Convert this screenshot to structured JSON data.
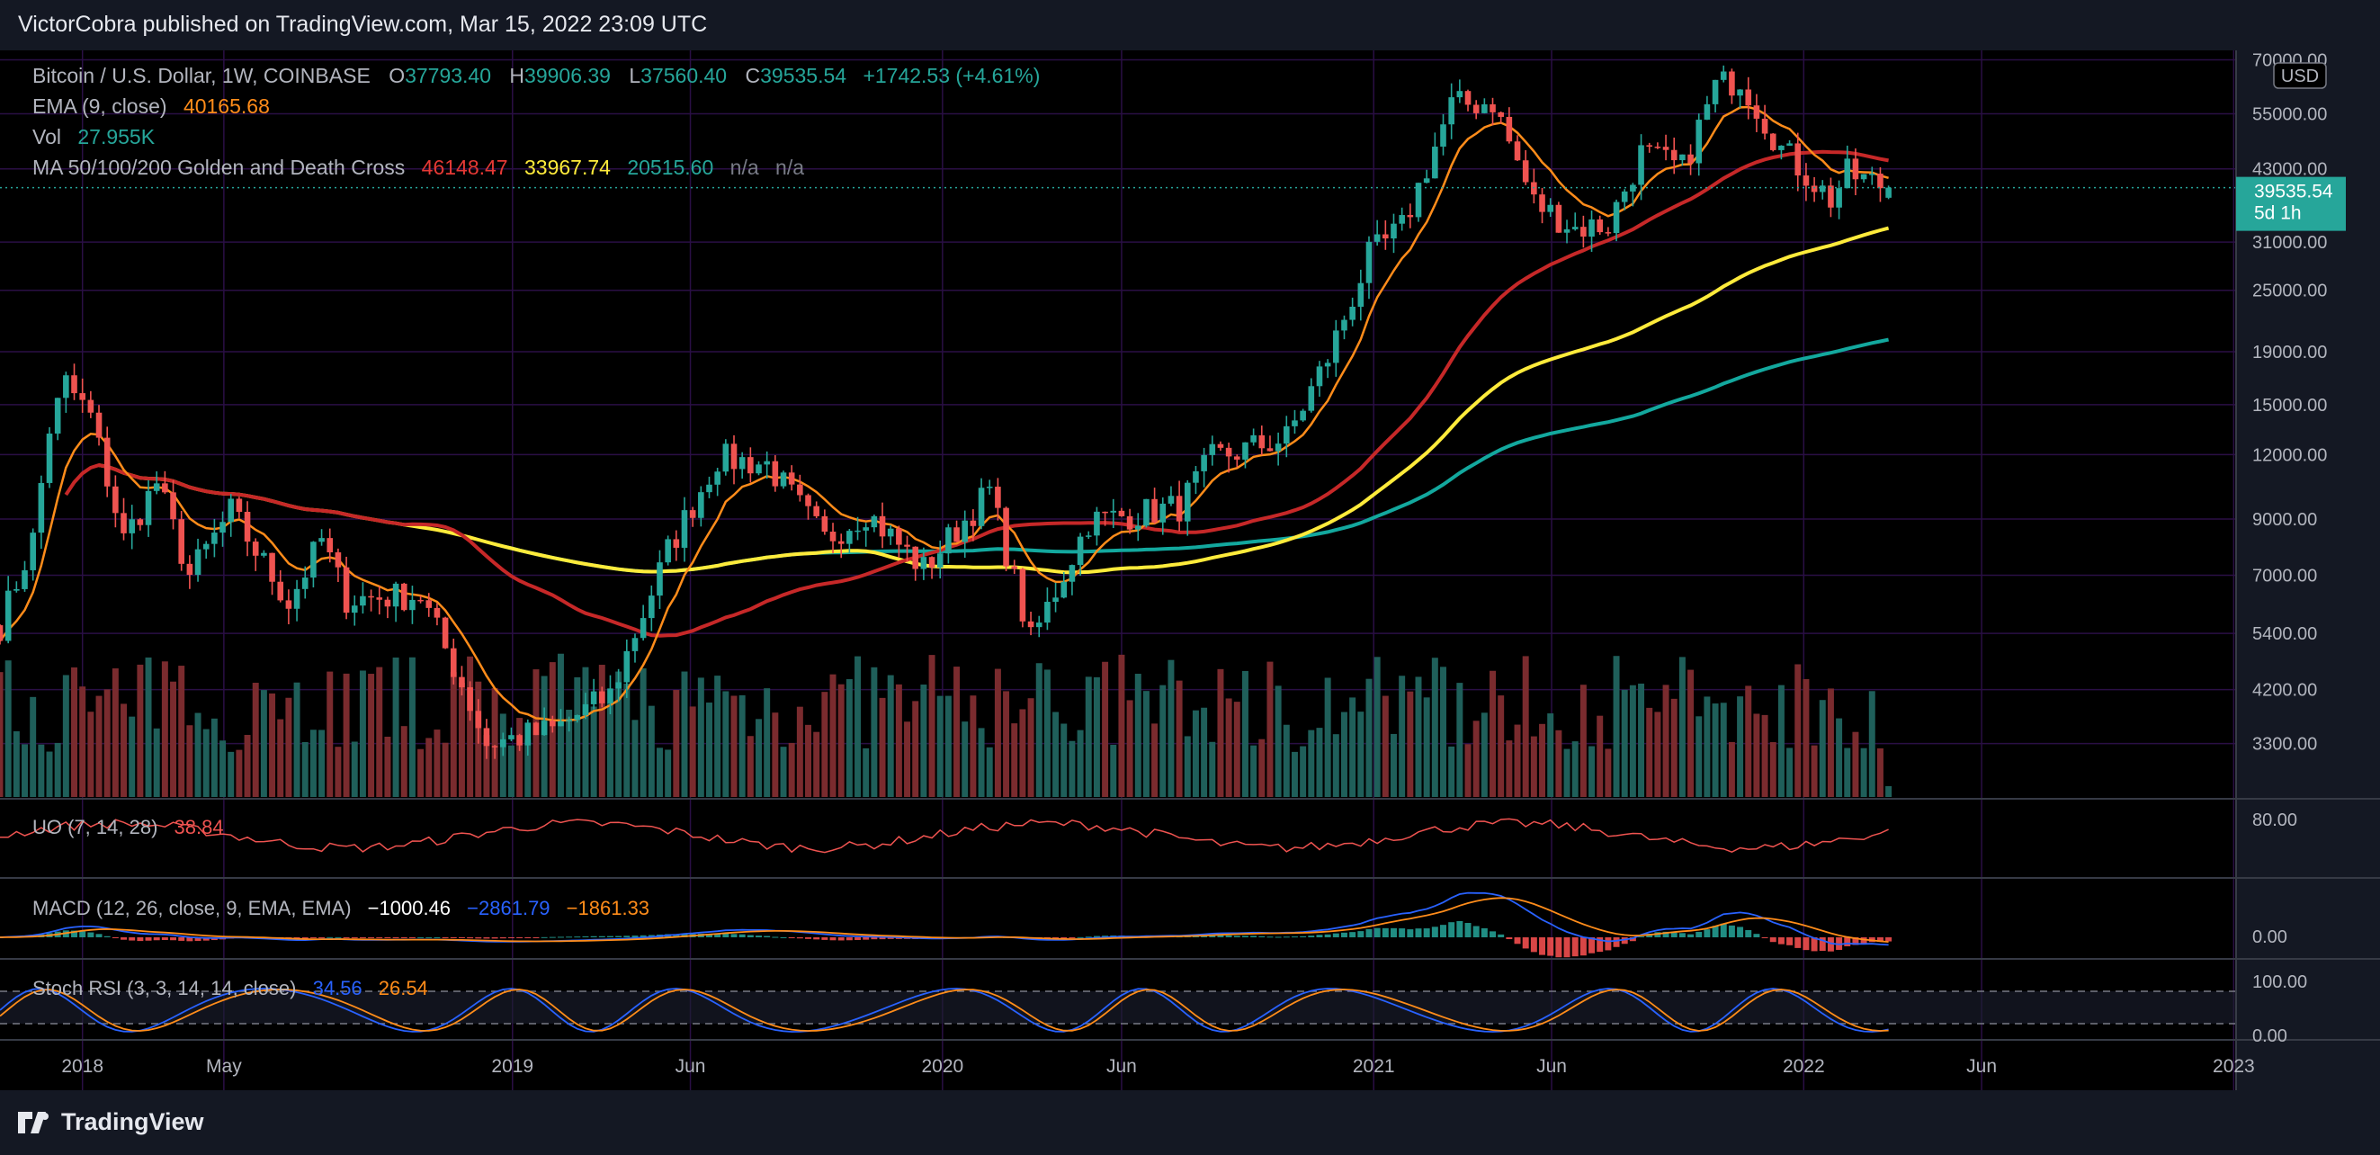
{
  "header": {
    "published": "VictorCobra published on TradingView.com, Mar 15, 2022 23:09 UTC"
  },
  "footer": {
    "brand": "TradingView"
  },
  "colors": {
    "background": "#000000",
    "grid": "#2a0f45",
    "up": "#26a69a",
    "down": "#ef5350",
    "ema": "#ff8c1a",
    "ma50": "#c62828",
    "ma100": "#ffeb3b",
    "ma200": "#13a89e",
    "text": "#b2b5be",
    "price_tag": "#26a69a"
  },
  "legend": {
    "symbol": "Bitcoin / U.S. Dollar, 1W, COINBASE",
    "o_label": "O",
    "o_value": "37793.40",
    "h_label": "H",
    "h_value": "39906.39",
    "l_label": "L",
    "l_value": "37560.40",
    "c_label": "C",
    "c_value": "39535.54",
    "change": "+1742.53 (+4.61%)",
    "ema_label": "EMA (9, close)",
    "ema_value": "40165.68",
    "vol_label": "Vol",
    "vol_value": "27.955K",
    "ma_label": "MA 50/100/200 Golden and Death Cross",
    "ma50_value": "46148.47",
    "ma100_value": "33967.74",
    "ma200_value": "20515.60",
    "na1": "n/a",
    "na2": "n/a"
  },
  "price_axis": {
    "currency": "USD",
    "current_price": "39535.54",
    "countdown": "5d 1h"
  },
  "oscillators": {
    "uo": {
      "label": "UO (7, 14, 28)",
      "value": "38.84",
      "levels": [
        "80.00"
      ]
    },
    "macd": {
      "label": "MACD (12, 26, close, 9, EMA, EMA)",
      "v1": "−1000.46",
      "v2": "−2861.79",
      "v3": "−1861.33",
      "levels": [
        "0.00"
      ]
    },
    "stoch": {
      "label": "Stoch RSI (3, 3, 14, 14, close)",
      "k": "34.56",
      "d": "26.54",
      "levels": [
        "100.00",
        "0.00"
      ]
    }
  },
  "chart_data": {
    "type": "candlestick",
    "timeframe": "1W",
    "symbol": "BTC/USD",
    "y_scale": "log",
    "y_ticks": [
      70000,
      55000,
      43000,
      31000,
      25000,
      19000,
      15000,
      12000,
      9000,
      7000,
      5400,
      4200,
      3300
    ],
    "y_tick_labels": [
      "70000.00",
      "55000.00",
      "43000.00",
      "31000.00",
      "25000.00",
      "19000.00",
      "15000.00",
      "12000.00",
      "9000.00",
      "7000.00",
      "5400.00",
      "4200.00",
      "3300.00"
    ],
    "ylim": [
      2600,
      73000
    ],
    "x_labels": [
      "2018",
      "May",
      "2019",
      "Jun",
      "2020",
      "Jun",
      "2021",
      "Jun",
      "2022",
      "Jun",
      "2023"
    ],
    "x_label_dates": [
      "2018-01-01",
      "2018-05-01",
      "2019-01-01",
      "2019-06-01",
      "2020-01-01",
      "2020-06-01",
      "2021-01-01",
      "2021-06-01",
      "2022-01-01",
      "2022-06-01",
      "2023-01-01"
    ],
    "xlim": [
      "2017-10-23",
      "2023-01-03"
    ],
    "price_anchors": [
      [
        "2017-10-23",
        5600
      ],
      [
        "2017-11-20",
        8200
      ],
      [
        "2017-12-04",
        13500
      ],
      [
        "2017-12-18",
        16500
      ],
      [
        "2018-01-08",
        14200
      ],
      [
        "2018-02-05",
        8200
      ],
      [
        "2018-03-05",
        10600
      ],
      [
        "2018-04-02",
        7000
      ],
      [
        "2018-05-07",
        9300
      ],
      [
        "2018-06-25",
        6200
      ],
      [
        "2018-07-23",
        8200
      ],
      [
        "2018-08-13",
        6300
      ],
      [
        "2018-10-15",
        6400
      ],
      [
        "2018-11-19",
        4300
      ],
      [
        "2018-12-10",
        3300
      ],
      [
        "2019-02-04",
        3500
      ],
      [
        "2019-03-25",
        4100
      ],
      [
        "2019-05-13",
        7800
      ],
      [
        "2019-06-24",
        11800
      ],
      [
        "2019-08-05",
        11500
      ],
      [
        "2019-09-23",
        8200
      ],
      [
        "2019-10-28",
        9300
      ],
      [
        "2019-12-16",
        7200
      ],
      [
        "2020-02-10",
        10200
      ],
      [
        "2020-03-16",
        5200
      ],
      [
        "2020-05-04",
        8900
      ],
      [
        "2020-07-20",
        9500
      ],
      [
        "2020-08-17",
        11800
      ],
      [
        "2020-10-19",
        12900
      ],
      [
        "2020-11-23",
        18500
      ],
      [
        "2020-12-28",
        29000
      ],
      [
        "2021-01-25",
        33000
      ],
      [
        "2021-03-08",
        57000
      ],
      [
        "2021-04-12",
        58000
      ],
      [
        "2021-05-17",
        37000
      ],
      [
        "2021-06-21",
        33000
      ],
      [
        "2021-07-19",
        33500
      ],
      [
        "2021-08-16",
        46000
      ],
      [
        "2021-09-20",
        43000
      ],
      [
        "2021-10-18",
        62000
      ],
      [
        "2021-11-08",
        64500
      ],
      [
        "2021-12-13",
        47000
      ],
      [
        "2022-01-24",
        37500
      ],
      [
        "2022-02-07",
        42000
      ],
      [
        "2022-03-14",
        39535.54
      ]
    ],
    "moving_averages": [
      {
        "name": "EMA (9, close)",
        "last": 40165.68
      },
      {
        "name": "MA 50",
        "last": 46148.47
      },
      {
        "name": "MA 100",
        "last": 33967.74
      },
      {
        "name": "MA 200",
        "last": 20515.6
      }
    ],
    "last_bar": {
      "open": 37793.4,
      "high": 39906.39,
      "low": 37560.4,
      "close": 39535.54,
      "change": 1742.53,
      "change_pct": 4.61,
      "volume": "27.955K"
    }
  }
}
